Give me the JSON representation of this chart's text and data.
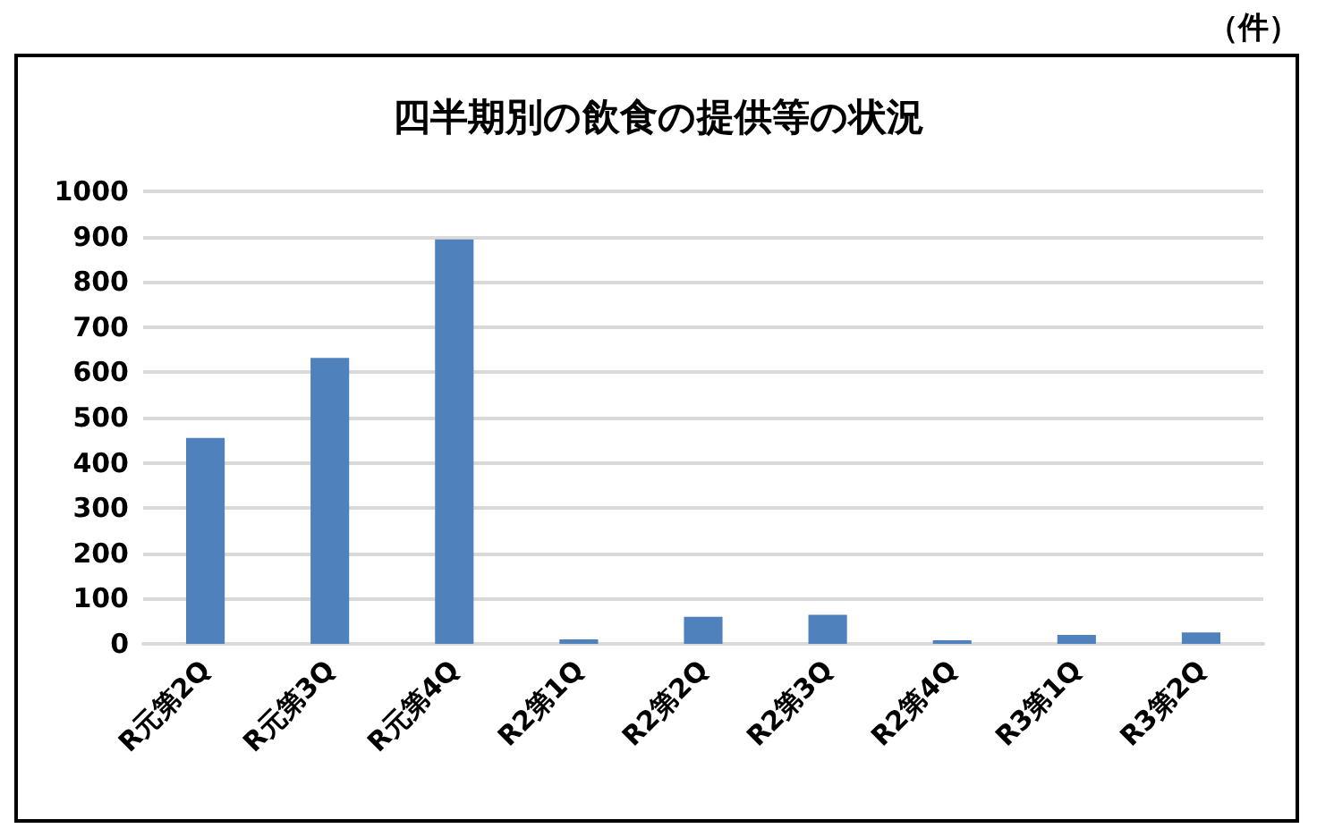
{
  "chart_data": {
    "type": "bar",
    "title": "四半期別の飲食の提供等の状況",
    "ylabel": "（件）",
    "categories": [
      "R元第2Q",
      "R元第3Q",
      "R元第4Q",
      "R2第1Q",
      "R2第2Q",
      "R2第3Q",
      "R2第4Q",
      "R3第1Q",
      "R3第2Q"
    ],
    "values": [
      455,
      632,
      894,
      10,
      60,
      64,
      8,
      20,
      25
    ],
    "color": "#4f81bd",
    "ylim": [
      0,
      1000
    ],
    "yticks": [
      0,
      100,
      200,
      300,
      400,
      500,
      600,
      700,
      800,
      900,
      1000
    ],
    "grid": "y"
  }
}
